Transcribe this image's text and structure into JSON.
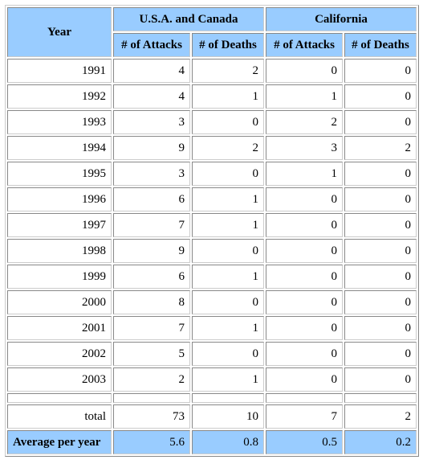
{
  "table": {
    "header": {
      "year": "Year",
      "groups": [
        "U.S.A. and Canada",
        "California"
      ],
      "columns": [
        "# of Attacks",
        "# of Deaths",
        "# of Attacks",
        "# of Deaths"
      ]
    },
    "rows": [
      [
        1991,
        4,
        2,
        0,
        0
      ],
      [
        1992,
        4,
        1,
        1,
        0
      ],
      [
        1993,
        3,
        0,
        2,
        0
      ],
      [
        1994,
        9,
        2,
        3,
        2
      ],
      [
        1995,
        3,
        0,
        1,
        0
      ],
      [
        1996,
        6,
        1,
        0,
        0
      ],
      [
        1997,
        7,
        1,
        0,
        0
      ],
      [
        1998,
        9,
        0,
        0,
        0
      ],
      [
        1999,
        6,
        1,
        0,
        0
      ],
      [
        2000,
        8,
        0,
        0,
        0
      ],
      [
        2001,
        7,
        1,
        0,
        0
      ],
      [
        2002,
        5,
        0,
        0,
        0
      ],
      [
        2003,
        2,
        1,
        0,
        0
      ]
    ],
    "total": [
      "total",
      73,
      10,
      7,
      2
    ],
    "average": [
      "Average per year",
      5.6,
      0.8,
      0.5,
      0.2
    ]
  }
}
